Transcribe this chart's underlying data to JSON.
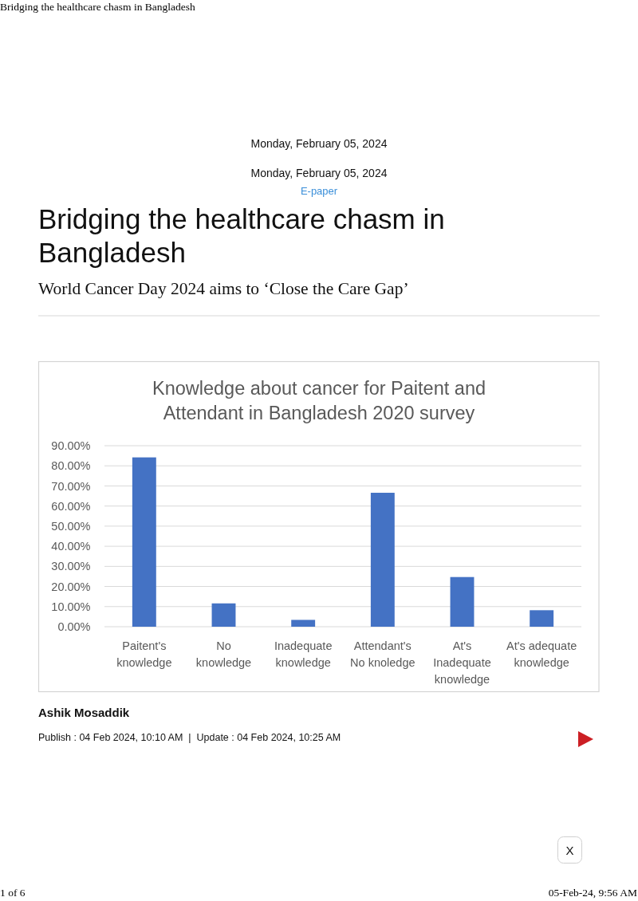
{
  "chart_data": {
    "type": "bar",
    "title": "Knowledge about cancer for Paitent and Attendant in Bangladesh 2020 survey",
    "categories": [
      "Paitent's knowledge",
      "No knowledge",
      "Inadequate knowledge",
      "Attendant's No knoledge",
      "At's Inadequate knowledge",
      "At's adequate knowledge"
    ],
    "values": [
      84.2,
      11.6,
      3.4,
      66.6,
      24.7,
      8.2
    ],
    "color": "#4472c4",
    "ylim": [
      0,
      90
    ],
    "yticks": [
      {
        "value": 0,
        "label": "0.00%"
      },
      {
        "value": 10,
        "label": "10.00%"
      },
      {
        "value": 20,
        "label": "20.00%"
      },
      {
        "value": 30,
        "label": "30.00%"
      },
      {
        "value": 40,
        "label": "40.00%"
      },
      {
        "value": 50,
        "label": "50.00%"
      },
      {
        "value": 60,
        "label": "60.00%"
      },
      {
        "value": 70,
        "label": "70.00%"
      },
      {
        "value": 80,
        "label": "80.00%"
      },
      {
        "value": 90,
        "label": "90.00%"
      }
    ],
    "grid": "y",
    "annotations": [
      "Bridging the healthcare chasm in Bangladesh",
      "Monday, February 05, 2024",
      "Monday, February 05, 2024",
      "E-paper",
      "Bridging the healthcare chasm in Bangladesh",
      "World Cancer Day 2024 aims to ‘Close the Care Gap’",
      "Ashik Mosaddik",
      "Publish : 04 Feb 2024, 10:10 AM  |  Update : 04 Feb 2024, 10:25 AM",
      "X",
      "1 of 6",
      "05-Feb-24, 9:56 AM"
    ]
  }
}
